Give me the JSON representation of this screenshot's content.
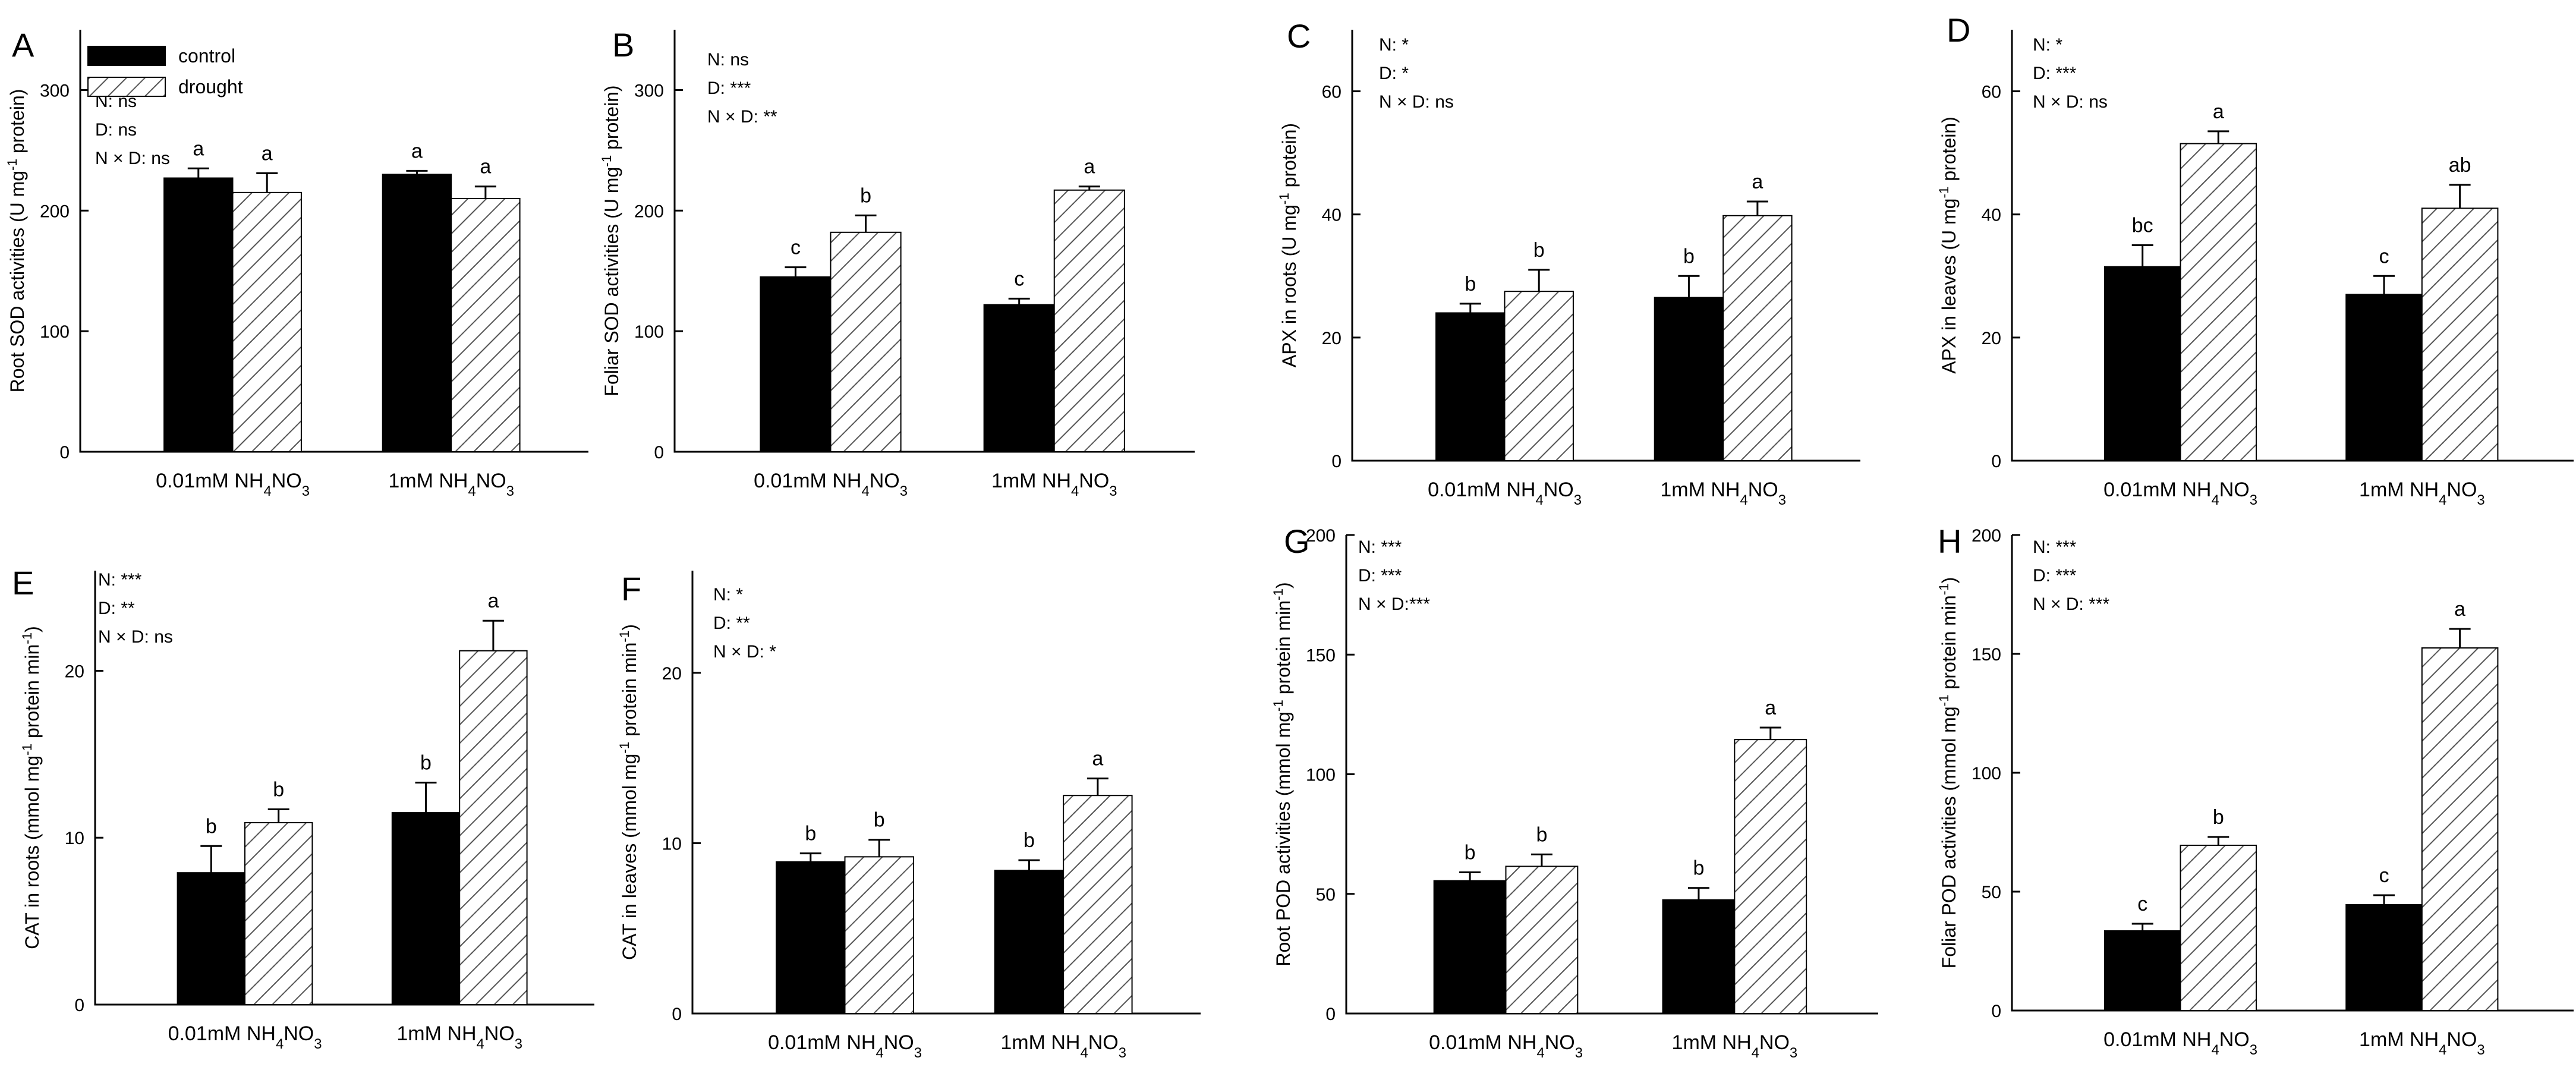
{
  "legend": {
    "entries": [
      {
        "name": "control",
        "fill": "#000000"
      },
      {
        "name": "drought",
        "fill": "hatch"
      }
    ],
    "placement": "top-left of panel A"
  },
  "colors": {
    "control": "#000000",
    "drought_hatch": "#555555",
    "axis": "#000000"
  },
  "chart_data": [
    {
      "panel": "A",
      "type": "bar",
      "categories": [
        "0.01mM NH4NO3",
        "1mM NH4NO3"
      ],
      "ylabel": "Root SOD activities (U mg-1 protein)",
      "ylim": [
        0,
        350
      ],
      "yticks": [
        0,
        100,
        200,
        300
      ],
      "series": [
        {
          "name": "control",
          "values": [
            227,
            230
          ],
          "errors": [
            8,
            3
          ],
          "letters": [
            "a",
            "a"
          ]
        },
        {
          "name": "drought",
          "values": [
            215,
            210
          ],
          "errors": [
            16,
            10
          ],
          "letters": [
            "a",
            "a"
          ]
        }
      ],
      "stats": [
        "N:  ns",
        "D:  ns",
        "N × D: ns"
      ]
    },
    {
      "panel": "B",
      "type": "bar",
      "categories": [
        "0.01mM NH4NO3",
        "1mM NH4NO3"
      ],
      "ylabel": "Foliar SOD activities (U mg-1 protein)",
      "ylim": [
        0,
        350
      ],
      "yticks": [
        0,
        100,
        200,
        300
      ],
      "series": [
        {
          "name": "control",
          "values": [
            145,
            122
          ],
          "errors": [
            8,
            5
          ],
          "letters": [
            "c",
            "c"
          ]
        },
        {
          "name": "drought",
          "values": [
            182,
            217
          ],
          "errors": [
            14,
            3
          ],
          "letters": [
            "b",
            "a"
          ]
        }
      ],
      "stats": [
        "N:  ns",
        "D: ***",
        "N × D: **"
      ]
    },
    {
      "panel": "C",
      "type": "bar",
      "categories": [
        "0.01mM NH4NO3",
        "1mM NH4NO3"
      ],
      "ylabel": "APX in roots (U mg-1 protein)",
      "ylim": [
        0,
        70
      ],
      "yticks": [
        0,
        20,
        40,
        60
      ],
      "series": [
        {
          "name": "control",
          "values": [
            24,
            26.5
          ],
          "errors": [
            1.5,
            3.5
          ],
          "letters": [
            "b",
            "b"
          ]
        },
        {
          "name": "drought",
          "values": [
            27.5,
            39.8
          ],
          "errors": [
            3.5,
            2.3
          ],
          "letters": [
            "b",
            "a"
          ]
        }
      ],
      "stats": [
        "N: *",
        "D: *",
        "N × D: ns"
      ]
    },
    {
      "panel": "D",
      "type": "bar",
      "categories": [
        "0.01mM NH4NO3",
        "1mM NH4NO3"
      ],
      "ylabel": "APX in leaves (U mg-1 protein)",
      "ylim": [
        0,
        70
      ],
      "yticks": [
        0,
        20,
        40,
        60
      ],
      "series": [
        {
          "name": "control",
          "values": [
            31.5,
            27
          ],
          "errors": [
            3.5,
            3
          ],
          "letters": [
            "bc",
            "c"
          ]
        },
        {
          "name": "drought",
          "values": [
            51.5,
            41
          ],
          "errors": [
            2,
            3.8
          ],
          "letters": [
            "a",
            "ab"
          ]
        }
      ],
      "stats": [
        "N: *",
        "D: ***",
        "N × D: ns"
      ]
    },
    {
      "panel": "E",
      "type": "bar",
      "categories": [
        "0.01mM NH4NO3",
        "1mM NH4NO3"
      ],
      "ylabel": "CAT in roots (mmol mg-1 protein min-1)",
      "ylim": [
        0,
        26
      ],
      "yticks": [
        0,
        10,
        20
      ],
      "series": [
        {
          "name": "control",
          "values": [
            7.9,
            11.5
          ],
          "errors": [
            1.6,
            1.8
          ],
          "letters": [
            "b",
            "b"
          ]
        },
        {
          "name": "drought",
          "values": [
            10.9,
            21.2
          ],
          "errors": [
            0.8,
            1.8
          ],
          "letters": [
            "b",
            "a"
          ]
        }
      ],
      "stats": [
        "N: ***",
        "D: **",
        "N × D: ns"
      ]
    },
    {
      "panel": "F",
      "type": "bar",
      "categories": [
        "0.01mM NH4NO3",
        "1mM NH4NO3"
      ],
      "ylabel": "CAT in leaves (mmol mg-1 protein min-1)",
      "ylim": [
        0,
        26
      ],
      "yticks": [
        0,
        10,
        20
      ],
      "series": [
        {
          "name": "control",
          "values": [
            8.9,
            8.4
          ],
          "errors": [
            0.5,
            0.6
          ],
          "letters": [
            "b",
            "b"
          ]
        },
        {
          "name": "drought",
          "values": [
            9.2,
            12.8
          ],
          "errors": [
            1,
            1
          ],
          "letters": [
            "b",
            "a"
          ]
        }
      ],
      "stats": [
        "N: *",
        "D: **",
        "N × D: *"
      ]
    },
    {
      "panel": "G",
      "type": "bar",
      "categories": [
        "0.01mM NH4NO3",
        "1mM NH4NO3"
      ],
      "ylabel": "Root POD activities (mmol mg-1 protein min-1)",
      "ylim": [
        0,
        200
      ],
      "yticks": [
        0,
        50,
        100,
        150,
        200
      ],
      "series": [
        {
          "name": "control",
          "values": [
            55.5,
            47.5
          ],
          "errors": [
            3.5,
            5
          ],
          "letters": [
            "b",
            "b"
          ]
        },
        {
          "name": "drought",
          "values": [
            61.5,
            114.5
          ],
          "errors": [
            5,
            5
          ],
          "letters": [
            "b",
            "a"
          ]
        }
      ],
      "stats": [
        "N: ***",
        "D: ***",
        "N × D:***"
      ]
    },
    {
      "panel": "H",
      "type": "bar",
      "categories": [
        "0.01mM NH4NO3",
        "1mM NH4NO3"
      ],
      "ylabel": "Foliar POD activities (mmol mg-1 protein min-1)",
      "ylim": [
        0,
        200
      ],
      "yticks": [
        0,
        50,
        100,
        150,
        200
      ],
      "series": [
        {
          "name": "control",
          "values": [
            33.5,
            44.5
          ],
          "errors": [
            3,
            4
          ],
          "letters": [
            "c",
            "c"
          ]
        },
        {
          "name": "drought",
          "values": [
            69.5,
            152.5
          ],
          "errors": [
            3.5,
            8
          ],
          "letters": [
            "b",
            "a"
          ]
        }
      ],
      "stats": [
        "N: ***",
        "D: ***",
        "N × D: ***"
      ]
    }
  ]
}
